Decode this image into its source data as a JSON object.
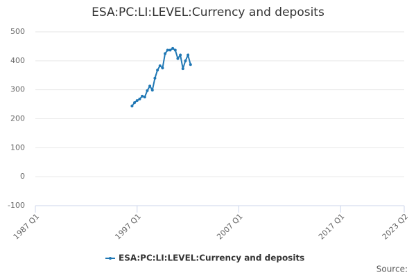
{
  "chart_data": {
    "type": "line",
    "title": "ESA:PC:LI:LEVEL:Currency and deposits",
    "x": [
      "1996 Q3",
      "1996 Q4",
      "1997 Q1",
      "1997 Q2",
      "1997 Q3",
      "1997 Q4",
      "1998 Q1",
      "1998 Q2",
      "1998 Q3",
      "1998 Q4",
      "1999 Q1",
      "1999 Q2",
      "1999 Q3",
      "1999 Q4",
      "2000 Q1",
      "2000 Q2",
      "2000 Q3",
      "2000 Q4",
      "2001 Q1",
      "2001 Q2",
      "2001 Q3",
      "2001 Q4",
      "2002 Q1",
      "2002 Q2"
    ],
    "series": [
      {
        "name": "ESA:PC:LI:LEVEL:Currency and deposits",
        "color": "#1f77b4",
        "values": [
          244,
          256,
          263,
          268,
          278,
          275,
          297,
          313,
          299,
          340,
          368,
          383,
          375,
          425,
          437,
          437,
          443,
          437,
          408,
          420,
          373,
          400,
          420,
          387
        ]
      }
    ],
    "xlim": [
      "1987 Q1",
      "2023 Q2"
    ],
    "xticks": [
      "1987 Q1",
      "1997 Q1",
      "2007 Q1",
      "2017 Q1",
      "2023 Q2"
    ],
    "ylim": [
      -100,
      500
    ],
    "yticks": [
      -100,
      0,
      100,
      200,
      300,
      400,
      500
    ],
    "grid": true,
    "legend": "bottom",
    "source": "Source:"
  }
}
